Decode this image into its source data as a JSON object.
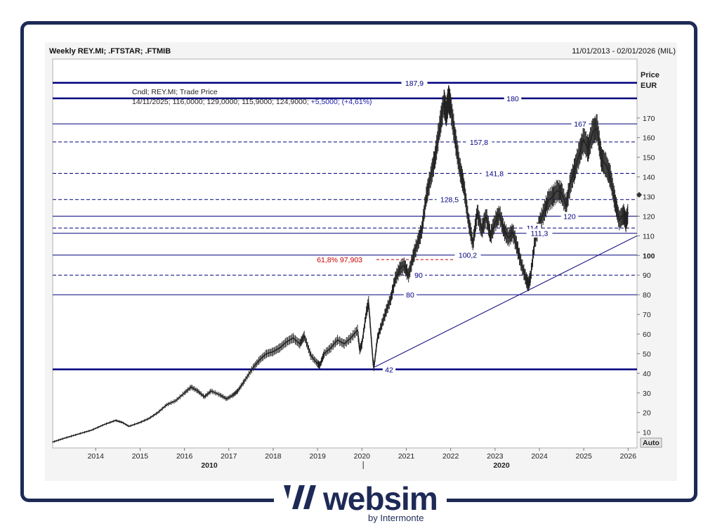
{
  "header": {
    "title": "Weekly REY.MI; .FTSTAR; .FTMIB",
    "range": "11/01/2013 - 02/01/2026 (MIL)"
  },
  "legend": {
    "line1": "Cndl; REY.MI; Trade Price",
    "line2_prefix": "14/11/2025; 116,0000; 129,0000; 115,9000; 124,9000;",
    "line2_change": "+5,5000; (+4,61%)"
  },
  "axis": {
    "price_label": "Price",
    "currency_label": "EUR",
    "auto_button": "Auto"
  },
  "brand": {
    "name": "websim",
    "sub": "by Intermonte",
    "color": "#1d2a56"
  },
  "chart_data": {
    "type": "line",
    "series": [
      {
        "values": [
          [
            2013.03,
            5
          ],
          [
            2013.3,
            7
          ],
          [
            2013.6,
            9
          ],
          [
            2013.9,
            11
          ],
          [
            2014.2,
            14
          ],
          [
            2014.45,
            16
          ],
          [
            2014.6,
            15
          ],
          [
            2014.75,
            13
          ],
          [
            2015.0,
            15
          ],
          [
            2015.2,
            17
          ],
          [
            2015.4,
            20
          ],
          [
            2015.6,
            24
          ],
          [
            2015.8,
            26
          ],
          [
            2016.0,
            30
          ],
          [
            2016.15,
            33
          ],
          [
            2016.3,
            31
          ],
          [
            2016.45,
            28
          ],
          [
            2016.6,
            31
          ],
          [
            2016.8,
            29
          ],
          [
            2016.95,
            27
          ],
          [
            2017.1,
            29
          ],
          [
            2017.2,
            31
          ],
          [
            2017.35,
            36
          ],
          [
            2017.55,
            43
          ],
          [
            2017.7,
            47
          ],
          [
            2017.85,
            50
          ],
          [
            2018.0,
            51
          ],
          [
            2018.15,
            53
          ],
          [
            2018.3,
            56
          ],
          [
            2018.45,
            58
          ],
          [
            2018.6,
            55
          ],
          [
            2018.7,
            59
          ],
          [
            2018.85,
            49
          ],
          [
            2019.0,
            45
          ],
          [
            2019.05,
            44
          ],
          [
            2019.15,
            50
          ],
          [
            2019.3,
            53
          ],
          [
            2019.45,
            57
          ],
          [
            2019.6,
            55
          ],
          [
            2019.75,
            58
          ],
          [
            2019.9,
            62
          ],
          [
            2019.95,
            52
          ],
          [
            2020.0,
            55
          ],
          [
            2020.1,
            71
          ],
          [
            2020.15,
            76
          ],
          [
            2020.25,
            46
          ],
          [
            2020.27,
            43
          ],
          [
            2020.35,
            58
          ],
          [
            2020.45,
            65
          ],
          [
            2020.55,
            72
          ],
          [
            2020.65,
            78
          ],
          [
            2020.75,
            88
          ],
          [
            2020.85,
            93
          ],
          [
            2020.95,
            95
          ],
          [
            2021.05,
            90
          ],
          [
            2021.15,
            99
          ],
          [
            2021.25,
            106
          ],
          [
            2021.35,
            113
          ],
          [
            2021.45,
            130
          ],
          [
            2021.55,
            140
          ],
          [
            2021.65,
            150
          ],
          [
            2021.75,
            165
          ],
          [
            2021.85,
            178
          ],
          [
            2021.9,
            172
          ],
          [
            2021.95,
            180
          ],
          [
            2022.0,
            176
          ],
          [
            2022.1,
            160
          ],
          [
            2022.2,
            145
          ],
          [
            2022.3,
            135
          ],
          [
            2022.4,
            118
          ],
          [
            2022.5,
            106
          ],
          [
            2022.6,
            122
          ],
          [
            2022.7,
            113
          ],
          [
            2022.8,
            120
          ],
          [
            2022.9,
            110
          ],
          [
            2023.0,
            117
          ],
          [
            2023.1,
            121
          ],
          [
            2023.2,
            113
          ],
          [
            2023.3,
            109
          ],
          [
            2023.4,
            112
          ],
          [
            2023.5,
            104
          ],
          [
            2023.6,
            95
          ],
          [
            2023.7,
            88
          ],
          [
            2023.75,
            85
          ],
          [
            2023.8,
            89
          ],
          [
            2023.9,
            108
          ],
          [
            2024.0,
            116
          ],
          [
            2024.1,
            122
          ],
          [
            2024.2,
            128
          ],
          [
            2024.3,
            130
          ],
          [
            2024.4,
            133
          ],
          [
            2024.5,
            132
          ],
          [
            2024.6,
            125
          ],
          [
            2024.7,
            137
          ],
          [
            2024.8,
            144
          ],
          [
            2024.9,
            152
          ],
          [
            2025.0,
            159
          ],
          [
            2025.1,
            154
          ],
          [
            2025.2,
            163
          ],
          [
            2025.3,
            165
          ],
          [
            2025.4,
            149
          ],
          [
            2025.5,
            146
          ],
          [
            2025.6,
            140
          ],
          [
            2025.7,
            128
          ],
          [
            2025.8,
            118
          ],
          [
            2025.9,
            121
          ],
          [
            2025.95,
            117
          ],
          [
            2026.0,
            122
          ]
        ]
      }
    ],
    "xlim": [
      2013.03,
      2026.2
    ],
    "ylim": [
      2,
      200
    ],
    "x_ticks": [
      "2014",
      "2015",
      "2016",
      "2017",
      "2018",
      "2019",
      "2020",
      "2021",
      "2022",
      "2023",
      "2024",
      "2025",
      "2026"
    ],
    "decade_labels": [
      "2010",
      "2020"
    ],
    "y_ticks": [
      10,
      20,
      30,
      40,
      50,
      60,
      70,
      80,
      90,
      100,
      110,
      120,
      130,
      140,
      150,
      160,
      170
    ],
    "y_tick_bold": [
      100
    ],
    "levels": [
      {
        "value": 187.9,
        "label": "187,9",
        "style": "thick"
      },
      {
        "value": 180,
        "label": "180",
        "style": "thick"
      },
      {
        "value": 167,
        "label": "167",
        "style": "solid"
      },
      {
        "value": 157.8,
        "label": "157,8",
        "style": "dashed"
      },
      {
        "value": 141.8,
        "label": "141,8",
        "style": "dashed"
      },
      {
        "value": 128.5,
        "label": "128,5",
        "style": "dashed"
      },
      {
        "value": 120,
        "label": "120",
        "style": "solid"
      },
      {
        "value": 114,
        "label": "114",
        "style": "dashed"
      },
      {
        "value": 111.3,
        "label": "111,3",
        "style": "solid"
      },
      {
        "value": 100.2,
        "label": "100,2",
        "style": "solid"
      },
      {
        "value": 90,
        "label": "90",
        "style": "dashed"
      },
      {
        "value": 80,
        "label": "80",
        "style": "solid"
      },
      {
        "value": 42,
        "label": "42",
        "style": "thick"
      }
    ],
    "fib": {
      "value": 97.903,
      "label": "61,8%  97,903",
      "color": "#cc0000"
    },
    "trendline": {
      "from": [
        2020.27,
        43
      ],
      "to": [
        2026.2,
        110
      ]
    },
    "colors": {
      "levels": "#00007f",
      "price": "#222222"
    }
  }
}
